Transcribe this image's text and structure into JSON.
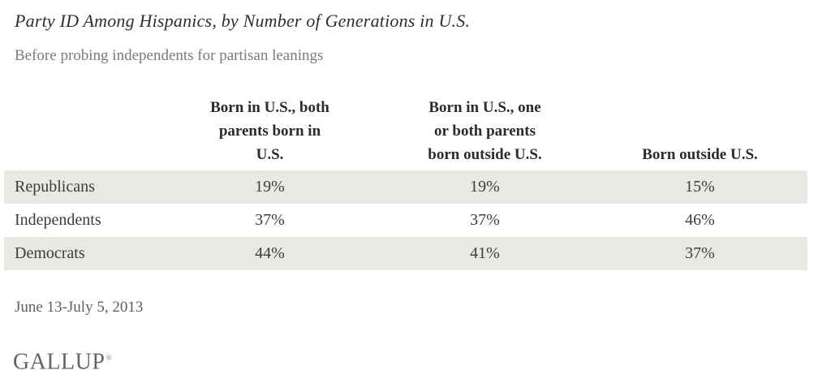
{
  "header": {
    "title": "Party ID Among Hispanics, by Number of Generations in U.S.",
    "subtitle": "Before probing independents for partisan leanings"
  },
  "table": {
    "columns": [
      "Born in U.S., both\nparents born in\nU.S.",
      "Born in U.S., one\nor both parents\nborn outside U.S.",
      "Born outside U.S."
    ],
    "rows": [
      {
        "label": "Republicans",
        "values": [
          "19%",
          "19%",
          "15%"
        ]
      },
      {
        "label": "Independents",
        "values": [
          "37%",
          "37%",
          "46%"
        ]
      },
      {
        "label": "Democrats",
        "values": [
          "44%",
          "41%",
          "37%"
        ]
      }
    ]
  },
  "footer": {
    "date": "June 13-July 5, 2013",
    "logo": "GALLUP",
    "registered": "®"
  },
  "colors": {
    "row_shade": "#e9e9e4",
    "title_text": "#2f2f2f",
    "subtitle_text": "#7a7a7a",
    "logo_text": "#63636b"
  },
  "chart_data": {
    "type": "table",
    "title": "Party ID Among Hispanics, by Number of Generations in U.S.",
    "subtitle": "Before probing independents for partisan leanings",
    "columns": [
      "Born in U.S., both parents born in U.S.",
      "Born in U.S., one or both parents born outside U.S.",
      "Born outside U.S."
    ],
    "rows": [
      {
        "label": "Republicans",
        "values_pct": [
          19,
          19,
          15
        ]
      },
      {
        "label": "Independents",
        "values_pct": [
          37,
          37,
          46
        ]
      },
      {
        "label": "Democrats",
        "values_pct": [
          44,
          41,
          37
        ]
      }
    ],
    "note": "June 13-July 5, 2013",
    "source": "GALLUP"
  }
}
